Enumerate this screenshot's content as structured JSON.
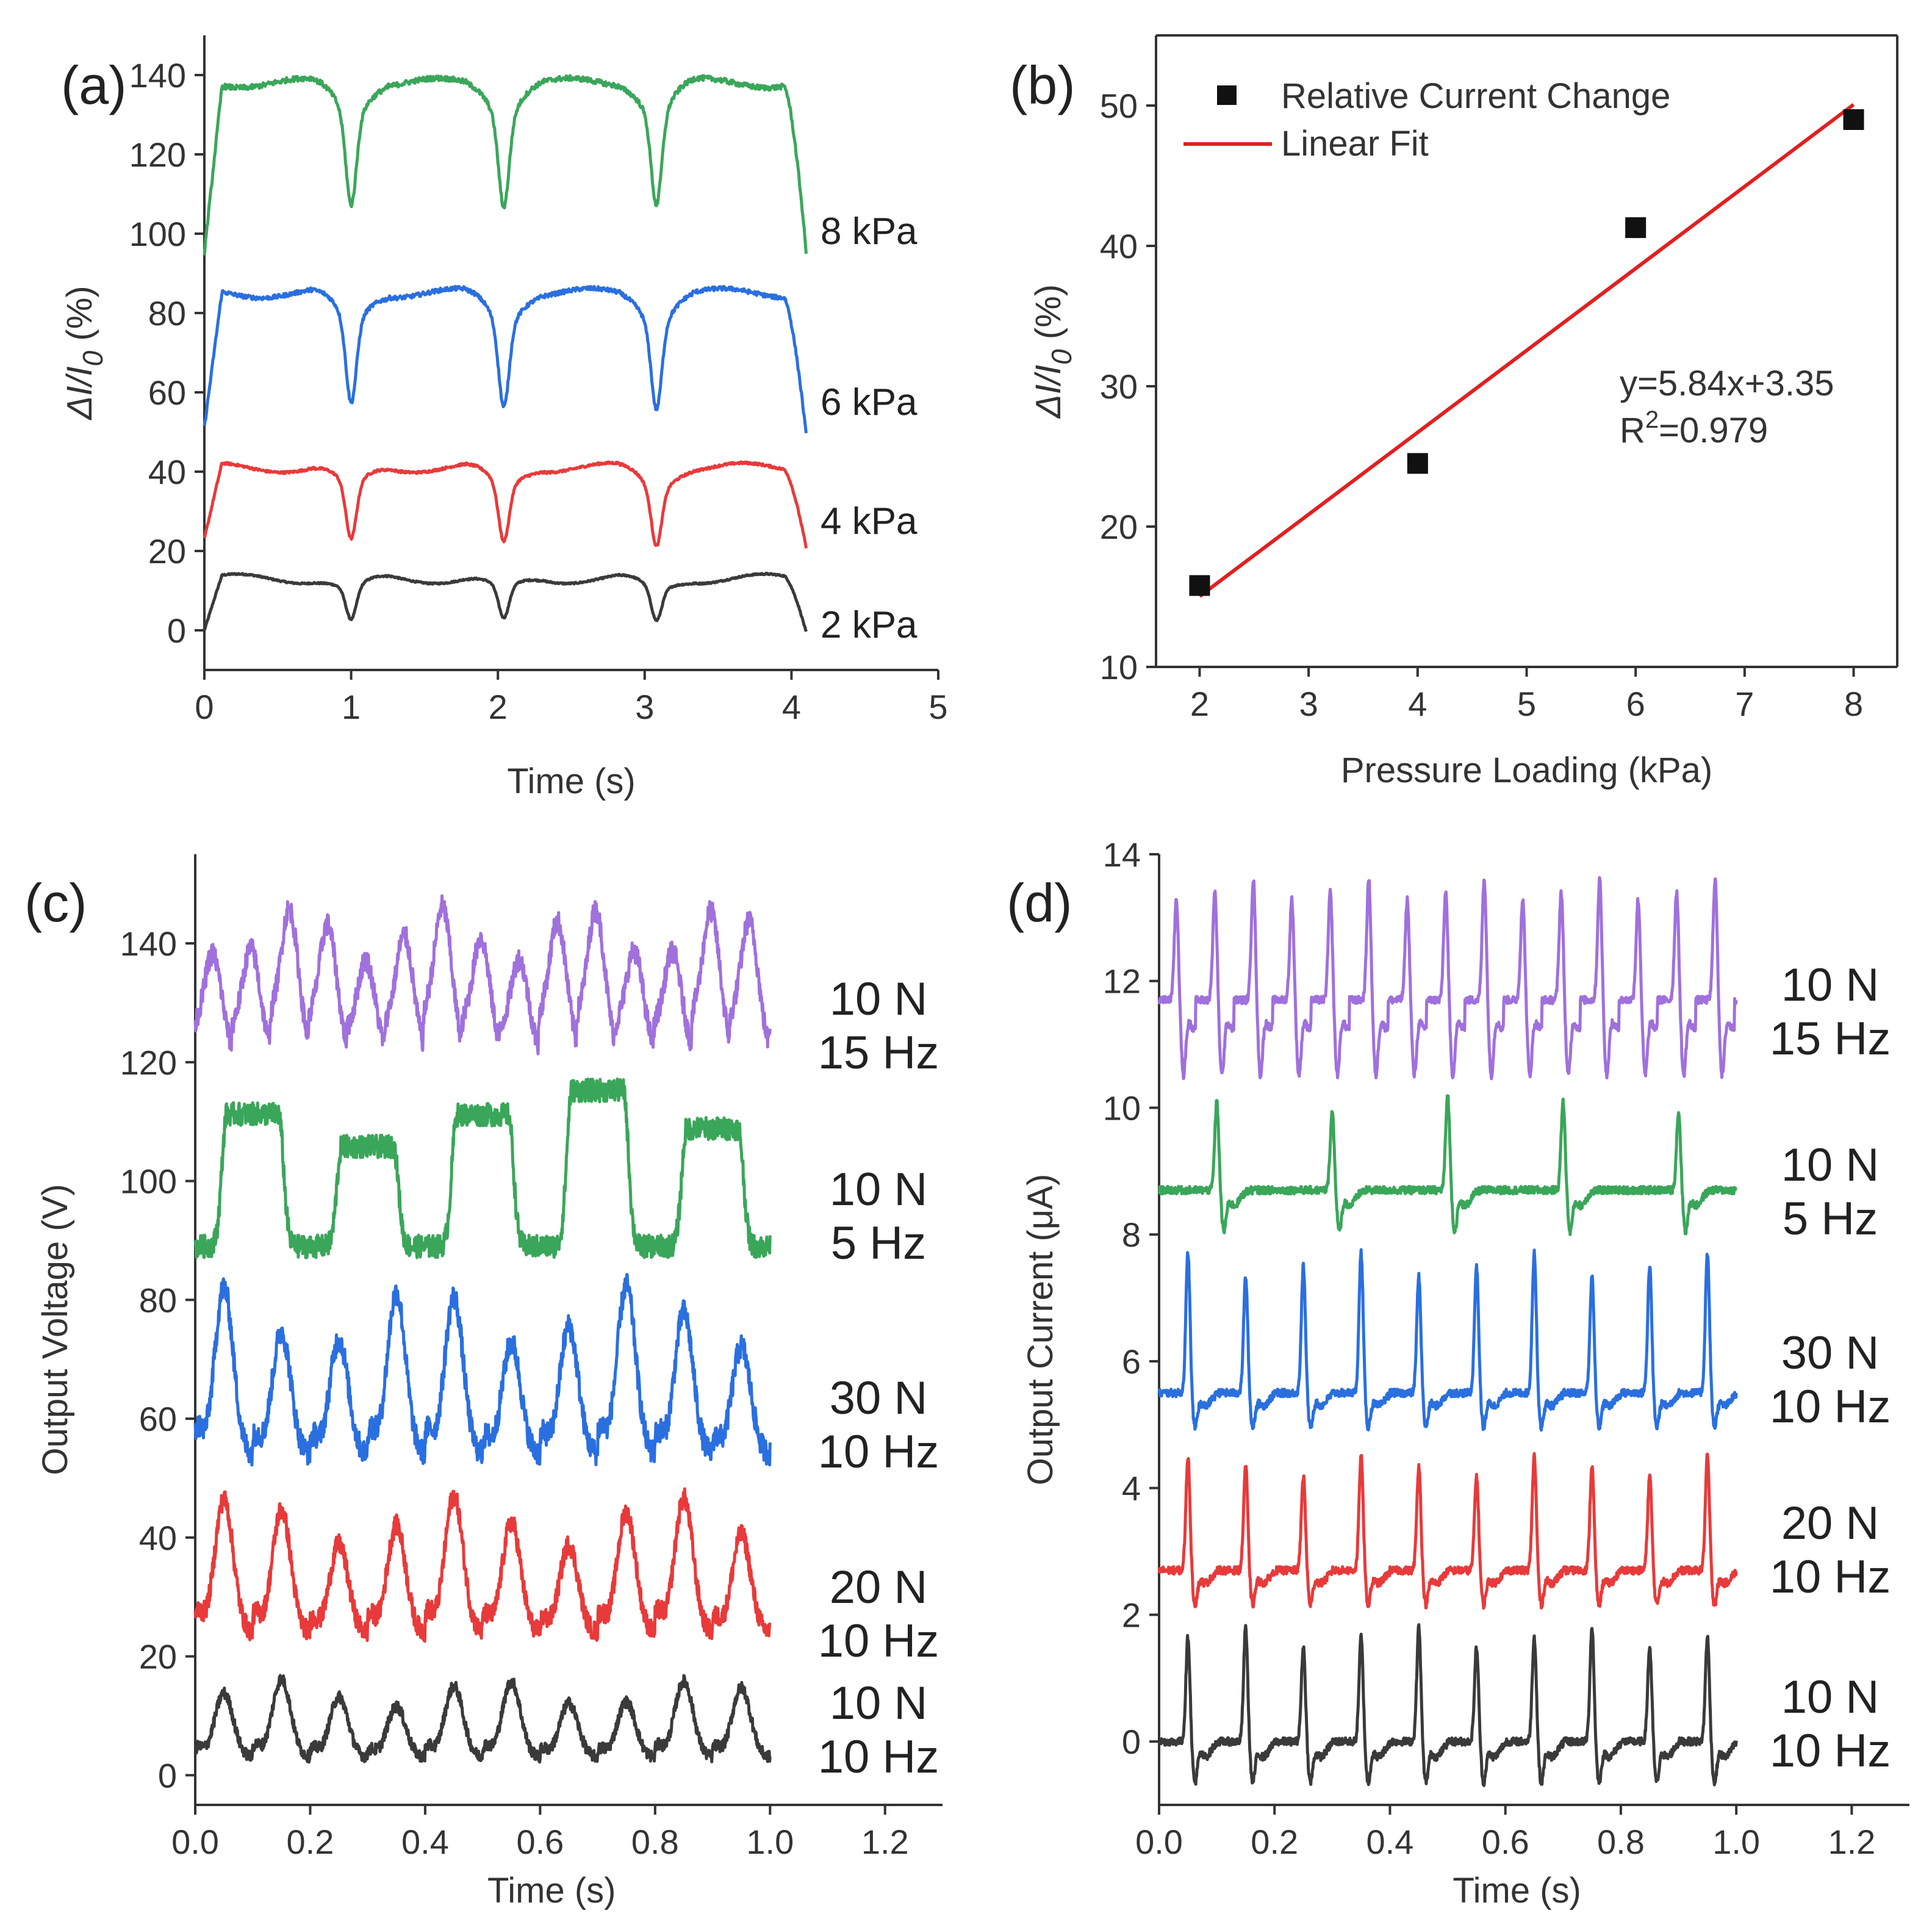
{
  "chart_data": [
    {
      "panel": "(a)",
      "type": "line",
      "xlabel": "Time (s)",
      "ylabel_main": "ΔI/I",
      "ylabel_sub": "0",
      "ylabel_unit": " (%)",
      "xlim": [
        0,
        5
      ],
      "ylim": [
        -10,
        150
      ],
      "xticks": [
        "0",
        "1",
        "2",
        "3",
        "4",
        "5"
      ],
      "yticks": [
        "0",
        "20",
        "40",
        "60",
        "80",
        "100",
        "120",
        "140"
      ],
      "period_s": 1.02,
      "t_end": 4.1,
      "series": [
        {
          "name": "2 kPa",
          "color": "#3a3a3a",
          "baseline": 0,
          "plateau": 13,
          "dip": 2
        },
        {
          "name": "4 kPa",
          "color": "#e83a3a",
          "baseline": 22,
          "plateau": 41,
          "dip": 22
        },
        {
          "name": "6 kPa",
          "color": "#2a6fe0",
          "baseline": 50,
          "plateau": 85,
          "dip": 57
        },
        {
          "name": "8 kPa",
          "color": "#3aa65a",
          "baseline": 95,
          "plateau": 138,
          "dip": 108
        }
      ]
    },
    {
      "panel": "(b)",
      "type": "scatter",
      "xlabel": "Pressure Loading (kPa)",
      "ylabel_main": "ΔI/I",
      "ylabel_sub": "0",
      "ylabel_unit": " (%)",
      "xlim": [
        1.6,
        8.4
      ],
      "ylim": [
        10,
        55
      ],
      "xticks": [
        "2",
        "3",
        "4",
        "5",
        "6",
        "7",
        "8"
      ],
      "yticks": [
        "10",
        "20",
        "30",
        "40",
        "50"
      ],
      "points": {
        "name": "Relative Current Change",
        "x": [
          2,
          4,
          6,
          8
        ],
        "y": [
          15.8,
          24.5,
          41.3,
          49
        ]
      },
      "fit": {
        "name": "Linear Fit",
        "slope": 5.84,
        "intercept": 3.35,
        "equation": "y=5.84x+3.35",
        "r2_prefix": "R",
        "r2_sup": "2",
        "r2_value": "=0.979",
        "color": "#e02020"
      }
    },
    {
      "panel": "(c)",
      "type": "line",
      "xlabel": "Time (s)",
      "ylabel": "Output Voltage (V)",
      "xlim": [
        0,
        1.3
      ],
      "ylim": [
        -5,
        155
      ],
      "xticks": [
        "0.0",
        "0.2",
        "0.4",
        "0.6",
        "0.8",
        "1.0",
        "1.2"
      ],
      "yticks": [
        "0",
        "20",
        "40",
        "60",
        "80",
        "100",
        "120",
        "140"
      ],
      "series": [
        {
          "label_force": "10 N",
          "label_freq": "10 Hz",
          "color": "#3a3a3a",
          "baseline": 3,
          "peak": 15,
          "freq_hz": 10
        },
        {
          "label_force": "20 N",
          "label_freq": "10 Hz",
          "color": "#e83a3a",
          "baseline": 24,
          "peak": 45,
          "freq_hz": 10
        },
        {
          "label_force": "30 N",
          "label_freq": "10 Hz",
          "color": "#2a6fe0",
          "baseline": 54,
          "peak": 80,
          "freq_hz": 10
        },
        {
          "label_force": "10 N",
          "label_freq": "5 Hz",
          "color": "#3aa65a",
          "baseline": 89,
          "peak": 113,
          "freq_hz": 5
        },
        {
          "label_force": "10 N",
          "label_freq": "15 Hz",
          "color": "#a070dd",
          "baseline": 121,
          "peak": 144,
          "freq_hz": 15
        }
      ]
    },
    {
      "panel": "(d)",
      "type": "line",
      "xlabel": "Time (s)",
      "ylabel": "Output Current (μA)",
      "xlim": [
        0,
        1.3
      ],
      "ylim": [
        -1,
        14
      ],
      "xticks": [
        "0.0",
        "0.2",
        "0.4",
        "0.6",
        "0.8",
        "1.0",
        "1.2"
      ],
      "yticks": [
        "0",
        "2",
        "4",
        "6",
        "8",
        "10",
        "12",
        "14"
      ],
      "series": [
        {
          "label_force": "10 N",
          "label_freq": "10 Hz",
          "color": "#3a3a3a",
          "baseline": 0,
          "peak": 1.8,
          "trough": -0.6,
          "freq_hz": 10
        },
        {
          "label_force": "20 N",
          "label_freq": "10 Hz",
          "color": "#e83a3a",
          "baseline": 2.7,
          "peak": 4.5,
          "trough": 2.2,
          "freq_hz": 10
        },
        {
          "label_force": "30 N",
          "label_freq": "10 Hz",
          "color": "#2a6fe0",
          "baseline": 5.5,
          "peak": 7.7,
          "trough": 5.0,
          "freq_hz": 10
        },
        {
          "label_force": "10 N",
          "label_freq": "5 Hz",
          "color": "#3aa65a",
          "baseline": 8.7,
          "peak": 10.2,
          "trough": 8.1,
          "freq_hz": 5
        },
        {
          "label_force": "10 N",
          "label_freq": "15 Hz",
          "color": "#a070dd",
          "baseline": 11.7,
          "peak": 13.6,
          "trough": 10.6,
          "freq_hz": 15
        }
      ]
    }
  ]
}
